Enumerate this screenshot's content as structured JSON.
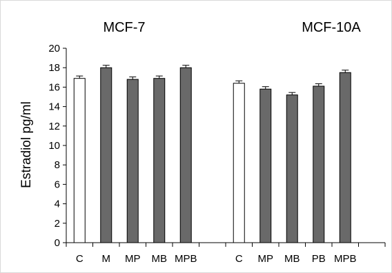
{
  "chart_data": {
    "type": "bar",
    "ylabel": "Estradiol pg/ml",
    "ylim": [
      0,
      20
    ],
    "yticks": [
      0,
      2,
      4,
      6,
      8,
      10,
      12,
      14,
      16,
      18,
      20
    ],
    "grid": false,
    "error_bars": true,
    "panels": [
      {
        "title": "MCF-7",
        "categories": [
          "C",
          "M",
          "MP",
          "MB",
          "MPB"
        ],
        "values": [
          16.9,
          18.0,
          16.8,
          16.9,
          18.0
        ],
        "errors": [
          0.25,
          0.25,
          0.25,
          0.25,
          0.25
        ],
        "colors": [
          "#ffffff",
          "#696969",
          "#696969",
          "#696969",
          "#696969"
        ]
      },
      {
        "title": "MCF-10A",
        "categories": [
          "C",
          "MP",
          "MB",
          "PB",
          "MPB"
        ],
        "values": [
          16.4,
          15.8,
          15.2,
          16.1,
          17.5
        ],
        "errors": [
          0.25,
          0.25,
          0.25,
          0.25,
          0.25
        ],
        "colors": [
          "#ffffff",
          "#696969",
          "#696969",
          "#696969",
          "#696969"
        ]
      }
    ]
  }
}
